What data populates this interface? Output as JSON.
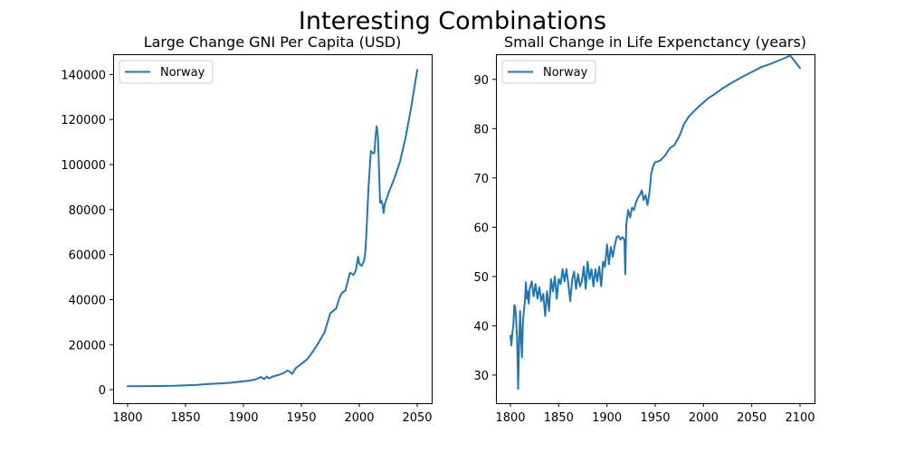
{
  "figure": {
    "title": "Interesting Combinations"
  },
  "chart_data": [
    {
      "type": "line",
      "title": "Large Change GNI Per Capita (USD)",
      "xlabel": "",
      "ylabel": "",
      "xlim": [
        1787.5,
        2062.5
      ],
      "ylim": [
        -6000,
        149000
      ],
      "xticks": [
        1800,
        1850,
        1900,
        1950,
        2000,
        2050
      ],
      "xtick_labels": [
        "1800",
        "1850",
        "1900",
        "1950",
        "2000",
        "2050"
      ],
      "yticks": [
        0,
        20000,
        40000,
        60000,
        80000,
        100000,
        120000,
        140000
      ],
      "ytick_labels": [
        "0",
        "20000",
        "40000",
        "60000",
        "80000",
        "100000",
        "120000",
        "140000"
      ],
      "grid": false,
      "legend_position": "upper-left",
      "series": [
        {
          "name": "Norway",
          "color": "#1f77b4",
          "x": [
            1800,
            1820,
            1840,
            1860,
            1870,
            1880,
            1890,
            1900,
            1905,
            1910,
            1915,
            1918,
            1920,
            1922,
            1925,
            1930,
            1935,
            1938,
            1940,
            1942,
            1945,
            1950,
            1955,
            1960,
            1965,
            1970,
            1975,
            1980,
            1983,
            1985,
            1988,
            1990,
            1992,
            1995,
            1997,
            1999,
            2000,
            2002,
            2004,
            2005,
            2006,
            2008,
            2010,
            2012,
            2013,
            2014,
            2015,
            2016,
            2017,
            2018,
            2019,
            2020,
            2021,
            2022,
            2025,
            2030,
            2035,
            2040,
            2045,
            2050
          ],
          "y": [
            1500,
            1600,
            1700,
            2100,
            2500,
            2800,
            3100,
            3700,
            4000,
            4500,
            5600,
            4700,
            5800,
            5000,
            5800,
            6500,
            7500,
            8500,
            8000,
            7000,
            9500,
            11500,
            13500,
            17000,
            21000,
            25500,
            34000,
            36000,
            41000,
            43000,
            44000,
            48000,
            52000,
            51000,
            53000,
            59000,
            56000,
            55000,
            57000,
            60000,
            68000,
            90000,
            106000,
            105000,
            105000,
            112000,
            117000,
            113000,
            98000,
            83000,
            84000,
            82500,
            78500,
            82500,
            87000,
            93500,
            101000,
            112000,
            126000,
            142000
          ]
        }
      ]
    },
    {
      "type": "line",
      "title": "Small Change in Life Expenctancy (years)",
      "xlabel": "",
      "ylabel": "",
      "xlim": [
        1785,
        2115
      ],
      "ylim": [
        24.3,
        95.1
      ],
      "xticks": [
        1800,
        1850,
        1900,
        1950,
        2000,
        2050,
        2100
      ],
      "xtick_labels": [
        "1800",
        "1850",
        "1900",
        "1950",
        "2000",
        "2050",
        "2100"
      ],
      "yticks": [
        30,
        40,
        50,
        60,
        70,
        80,
        90
      ],
      "ytick_labels": [
        "30",
        "40",
        "50",
        "60",
        "70",
        "80",
        "90"
      ],
      "grid": false,
      "legend_position": "upper-left",
      "series": [
        {
          "name": "Norway",
          "color": "#1f77b4",
          "x": [
            1800,
            1801,
            1802,
            1803,
            1804,
            1805,
            1806,
            1807,
            1808,
            1809,
            1810,
            1811,
            1812,
            1813,
            1814,
            1815,
            1816,
            1817,
            1818,
            1819,
            1820,
            1822,
            1824,
            1826,
            1828,
            1830,
            1832,
            1834,
            1836,
            1838,
            1840,
            1842,
            1844,
            1846,
            1848,
            1850,
            1852,
            1854,
            1856,
            1858,
            1860,
            1862,
            1864,
            1866,
            1868,
            1870,
            1872,
            1874,
            1876,
            1878,
            1880,
            1882,
            1884,
            1886,
            1888,
            1890,
            1892,
            1894,
            1896,
            1898,
            1900,
            1902,
            1904,
            1906,
            1908,
            1910,
            1912,
            1914,
            1916,
            1918,
            1919,
            1920,
            1922,
            1924,
            1926,
            1928,
            1930,
            1932,
            1934,
            1936,
            1938,
            1940,
            1942,
            1944,
            1946,
            1948,
            1950,
            1955,
            1960,
            1965,
            1970,
            1975,
            1980,
            1985,
            1990,
            1995,
            2000,
            2005,
            2010,
            2015,
            2020,
            2030,
            2040,
            2050,
            2060,
            2070,
            2080,
            2090,
            2100
          ],
          "y": [
            38,
            36,
            38.5,
            40,
            44.2,
            43.8,
            41,
            37,
            27.2,
            36,
            43,
            38,
            33.6,
            41,
            43,
            45,
            48.8,
            45.5,
            47,
            44.5,
            47.5,
            49,
            46,
            48.5,
            45.5,
            47.8,
            45,
            46.5,
            42,
            47,
            43,
            49.5,
            47,
            50,
            45.5,
            49.5,
            48.5,
            51.5,
            49,
            51.5,
            48.5,
            45,
            49.5,
            51,
            47.5,
            50.5,
            48,
            49,
            52,
            47.5,
            53,
            49.5,
            51.5,
            48,
            51.5,
            49,
            52,
            48,
            53,
            52,
            56.5,
            52.5,
            56,
            54,
            56.2,
            58,
            58.2,
            57.5,
            58,
            57.5,
            50.5,
            60.5,
            63.5,
            62,
            64,
            63.5,
            65,
            66,
            66.5,
            67.5,
            65.5,
            66.5,
            64.5,
            67,
            71,
            72.5,
            73.2,
            73.5,
            74.5,
            76,
            76.7,
            78.5,
            81,
            82.5,
            83.5,
            84.5,
            85.3,
            86.2,
            86.8,
            87.5,
            88.2,
            89.4,
            90.5,
            91.5,
            92.5,
            93.2,
            94,
            94.8,
            92.3
          ]
        }
      ]
    }
  ]
}
